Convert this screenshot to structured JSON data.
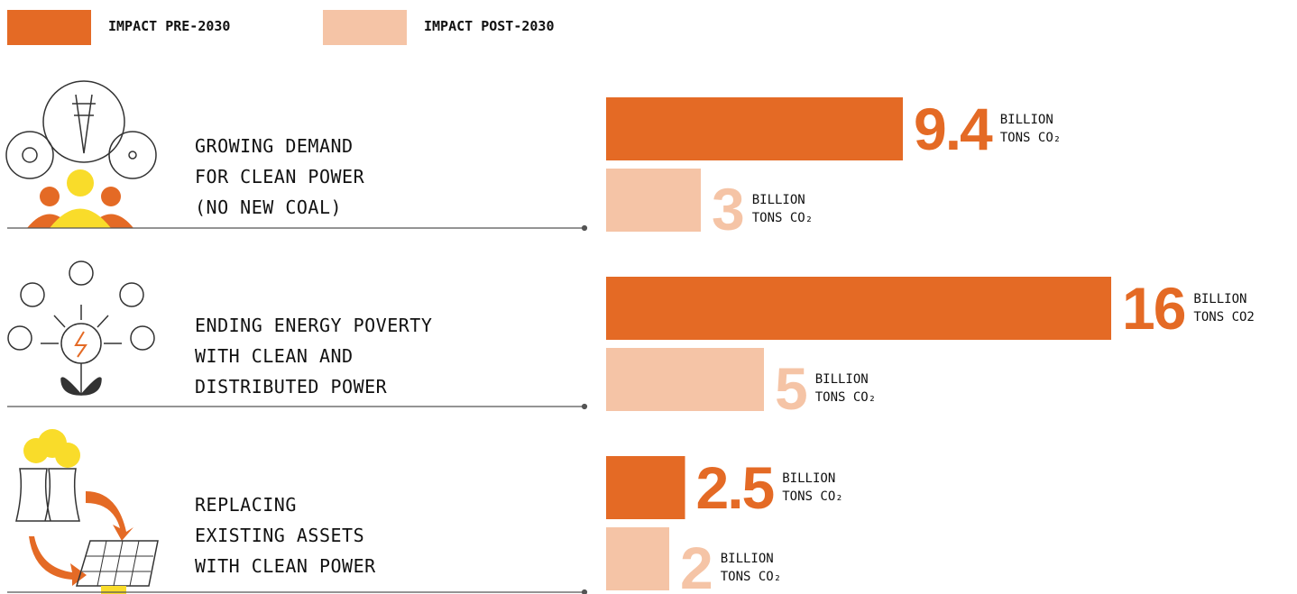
{
  "chart_data": {
    "type": "bar",
    "orientation": "horizontal",
    "categories": [
      "GROWING DEMAND\nFOR CLEAN POWER\n(NO NEW COAL)",
      "ENDING ENERGY POVERTY\nWITH CLEAN AND\nDISTRIBUTED POWER",
      "REPLACING\nEXISTING ASSETS\nWITH CLEAN POWER"
    ],
    "series": [
      {
        "name": "IMPACT PRE-2030",
        "color": "#e46a25",
        "values": [
          9.4,
          16,
          2.5
        ],
        "unit_labels": [
          "BILLION\nTONS CO₂",
          "BILLION\nTONS CO2",
          "BILLION\nTONS CO₂"
        ]
      },
      {
        "name": "IMPACT POST-2030",
        "color": "#f5c4a6",
        "values": [
          3,
          5,
          2
        ],
        "unit_labels": [
          "BILLION\nTONS CO₂",
          "BILLION\nTONS CO₂",
          "BILLION\nTONS CO₂"
        ]
      }
    ]
  }
}
